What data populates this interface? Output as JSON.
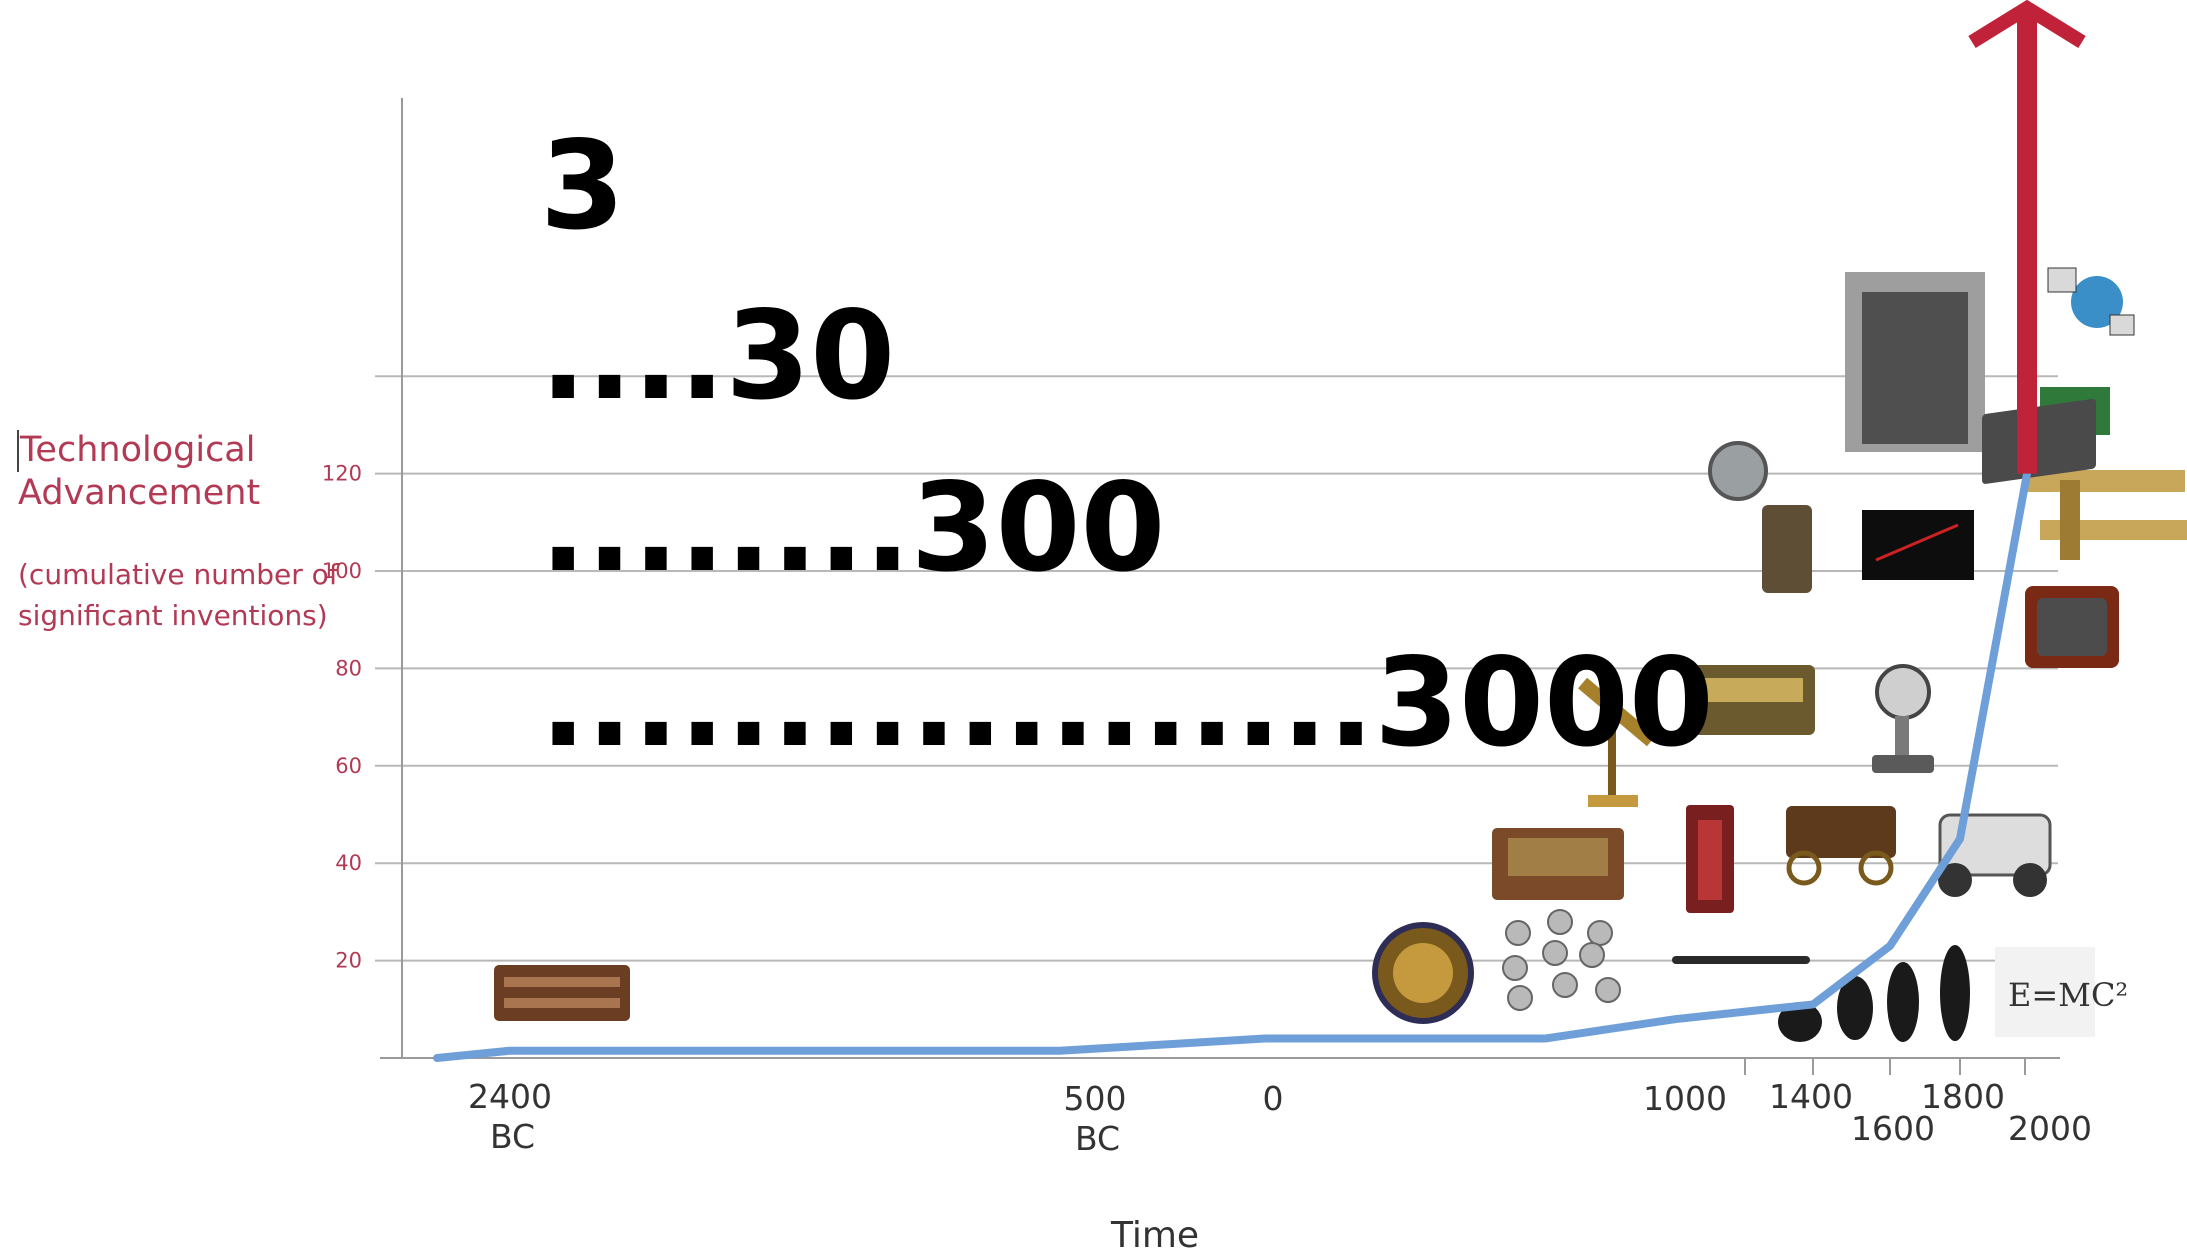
{
  "chart_data": {
    "type": "line",
    "xlabel": "Time",
    "ylabel": "Technological Advancement",
    "ylabel_sub": [
      "(cumulative number of",
      "significant inventions)"
    ],
    "y_ticks": [
      "20",
      "40",
      "60",
      "80",
      "100",
      "120"
    ],
    "y_values": [
      20,
      40,
      60,
      80,
      100,
      120
    ],
    "ylim": [
      0,
      140
    ],
    "x_ticks": [
      {
        "line1": "2400",
        "line2": "BC"
      },
      {
        "line1": "500",
        "line2": "BC"
      },
      {
        "line1": "0",
        "line2": ""
      },
      {
        "line1": "1000",
        "line2": ""
      },
      {
        "line1": "1400",
        "line2": ""
      },
      {
        "line1": "1600",
        "line2": ""
      },
      {
        "line1": "1800",
        "line2": ""
      },
      {
        "line1": "2000",
        "line2": ""
      }
    ],
    "grid": true,
    "series": [
      {
        "x": [
          -2600,
          -2400,
          -500,
          0,
          800,
          1000,
          1400,
          1600,
          1800,
          2000
        ],
        "y": [
          0,
          1.5,
          1.5,
          4,
          4,
          8,
          11,
          23,
          45,
          120
        ],
        "color": "#6f9fd8"
      }
    ],
    "arrow_color": "#c0223a",
    "annotations": [
      "3",
      "....30",
      "........300",
      "..................3000"
    ],
    "inset_labels": [
      "E=MC²"
    ]
  }
}
